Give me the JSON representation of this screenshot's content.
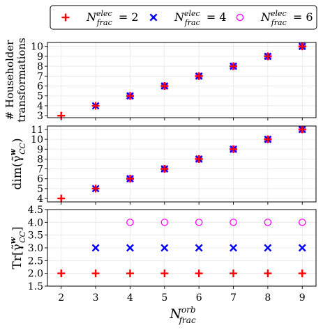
{
  "legend": {
    "placement": "top",
    "entries": [
      {
        "sup": "elec",
        "sub": "frac",
        "eq": "= 2",
        "marker": "plus",
        "color": "#ff0000"
      },
      {
        "sup": "elec",
        "sub": "frac",
        "eq": "= 4",
        "marker": "x",
        "color": "#0000ff"
      },
      {
        "sup": "elec",
        "sub": "frac",
        "eq": "= 6",
        "marker": "circle",
        "color": "#ff00ff"
      }
    ]
  },
  "xaxis": {
    "label_base": "N",
    "label_sup": "orb",
    "label_sub": "frac",
    "range": [
      1.6,
      9.4
    ],
    "ticks": [
      "2",
      "3",
      "4",
      "5",
      "6",
      "7",
      "8",
      "9"
    ]
  },
  "chart_data": [
    {
      "type": "scatter",
      "ylabel_lines": [
        "# Householder",
        "transformations"
      ],
      "ylim": [
        2.8,
        10.4
      ],
      "yticks": [
        "3",
        "4",
        "5",
        "6",
        "7",
        "8",
        "9",
        "10"
      ],
      "grid": true,
      "series": [
        {
          "marker": "plus",
          "color": "#ff0000",
          "x": [
            2,
            3,
            4,
            5,
            6,
            7,
            8,
            9
          ],
          "y": [
            3,
            4,
            5,
            6,
            7,
            8,
            9,
            10
          ]
        },
        {
          "marker": "x",
          "color": "#0000ff",
          "x": [
            3,
            4,
            5,
            6,
            7,
            8,
            9
          ],
          "y": [
            4,
            5,
            6,
            7,
            8,
            9,
            10
          ]
        },
        {
          "marker": "circle",
          "color": "#ff00ff",
          "x": [
            4,
            5,
            6,
            7,
            8,
            9
          ],
          "y": [
            5,
            6,
            7,
            8,
            9,
            10
          ]
        }
      ]
    },
    {
      "type": "scatter",
      "ylabel": "dim(γ̃",
      "ylabel_sup": "w",
      "ylabel_sub": "CC",
      "ylabel_close": ")",
      "ylim": [
        3.65,
        11.35
      ],
      "yticks": [
        "4",
        "5",
        "6",
        "7",
        "8",
        "9",
        "10",
        "11"
      ],
      "grid": true,
      "series": [
        {
          "marker": "plus",
          "color": "#ff0000",
          "x": [
            2,
            3,
            4,
            5,
            6,
            7,
            8,
            9
          ],
          "y": [
            4,
            5,
            6,
            7,
            8,
            9,
            10,
            11
          ]
        },
        {
          "marker": "x",
          "color": "#0000ff",
          "x": [
            3,
            4,
            5,
            6,
            7,
            8,
            9
          ],
          "y": [
            5,
            6,
            7,
            8,
            9,
            10,
            11
          ]
        },
        {
          "marker": "circle",
          "color": "#ff00ff",
          "x": [
            4,
            5,
            6,
            7,
            8,
            9
          ],
          "y": [
            6,
            7,
            8,
            9,
            10,
            11
          ]
        }
      ]
    },
    {
      "type": "scatter",
      "ylabel": "Tr[γ̃",
      "ylabel_sup": "w",
      "ylabel_sub": "CC",
      "ylabel_close": "]",
      "ylim": [
        1.5,
        4.5
      ],
      "yticks": [
        "1.5",
        "2.0",
        "2.5",
        "3.0",
        "3.5",
        "4.0",
        "4.5"
      ],
      "grid": true,
      "series": [
        {
          "marker": "plus",
          "color": "#ff0000",
          "x": [
            2,
            3,
            4,
            5,
            6,
            7,
            8,
            9
          ],
          "y": [
            2,
            2,
            2,
            2,
            2,
            2,
            2,
            2
          ]
        },
        {
          "marker": "x",
          "color": "#0000ff",
          "x": [
            3,
            4,
            5,
            6,
            7,
            8,
            9
          ],
          "y": [
            3,
            3,
            3,
            3,
            3,
            3,
            3
          ]
        },
        {
          "marker": "circle",
          "color": "#ff00ff",
          "x": [
            4,
            5,
            6,
            7,
            8,
            9
          ],
          "y": [
            4,
            4,
            4,
            4,
            4,
            4
          ]
        }
      ]
    }
  ]
}
